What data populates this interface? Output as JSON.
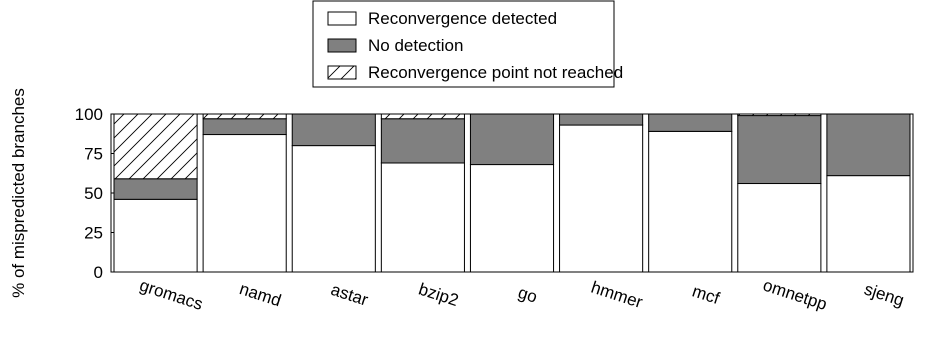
{
  "chart_data": {
    "type": "bar",
    "stacked": true,
    "title": "",
    "xlabel": "",
    "ylabel": "% of mispredicted branches",
    "ylim": [
      0,
      100
    ],
    "yticks": [
      0,
      25,
      50,
      75,
      100
    ],
    "grid": false,
    "legend_position": "top-center",
    "categories": [
      "gromacs",
      "namd",
      "astar",
      "bzip2",
      "go",
      "hmmer",
      "mcf",
      "omnetpp",
      "sjeng"
    ],
    "series": [
      {
        "name": "Reconvergence detected",
        "fill": "#ffffff",
        "pattern": "none",
        "values": [
          46,
          87,
          80,
          69,
          68,
          93,
          89,
          56,
          61
        ]
      },
      {
        "name": "No detection",
        "fill": "#808080",
        "pattern": "none",
        "values": [
          13,
          10,
          20,
          28,
          32,
          7,
          11,
          43,
          39
        ]
      },
      {
        "name": "Reconvergence point not reached",
        "fill": "#ffffff",
        "pattern": "diagonal-hatch",
        "values": [
          41,
          3,
          0,
          3,
          0,
          0,
          0,
          1,
          0
        ]
      }
    ]
  }
}
